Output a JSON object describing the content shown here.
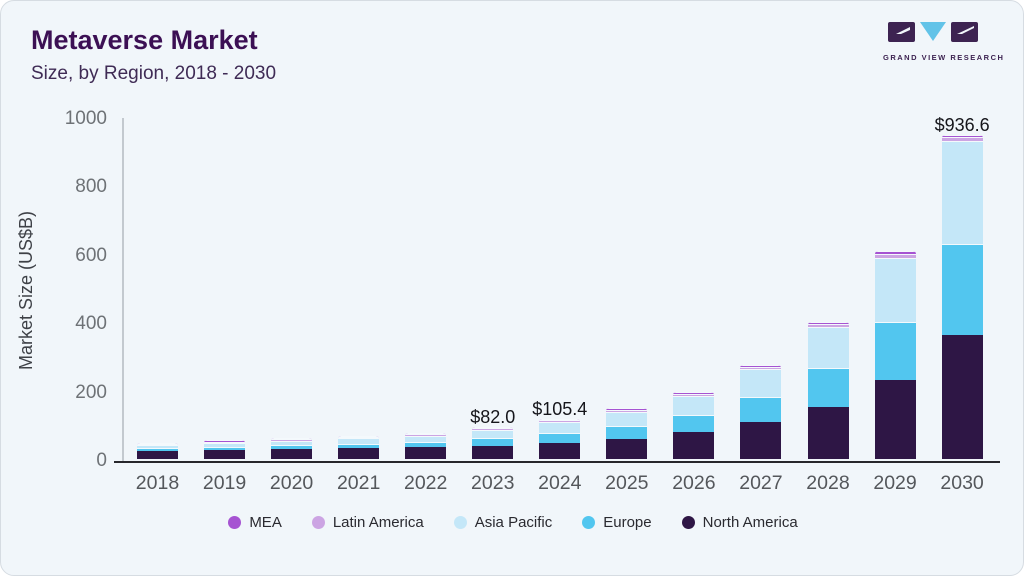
{
  "header": {
    "title": "Metaverse Market",
    "subtitle": "Size, by Region, 2018 - 2030"
  },
  "logo": {
    "name": "grand-view-research-logo",
    "text": "GRAND VIEW RESEARCH",
    "dark_color": "#3d2351",
    "blue_color": "#62c3e8"
  },
  "chart_data": {
    "type": "bar",
    "stacked": true,
    "title": "Metaverse Market Size, by Region, 2018 - 2030",
    "xlabel": "",
    "ylabel": "Market Size (US$B)",
    "ylim": [
      0,
      1000
    ],
    "yticks": [
      0,
      200,
      400,
      600,
      800,
      1000
    ],
    "grid": false,
    "legend_position": "bottom",
    "categories": [
      "2018",
      "2019",
      "2020",
      "2021",
      "2022",
      "2023",
      "2024",
      "2025",
      "2026",
      "2027",
      "2028",
      "2029",
      "2030"
    ],
    "series": [
      {
        "name": "North America",
        "color": "#2e1645",
        "values": [
          22,
          25,
          28,
          31,
          34.5,
          37,
          46,
          58,
          79,
          107,
          153,
          230,
          362
        ]
      },
      {
        "name": "Europe",
        "color": "#52c6ef",
        "values": [
          6,
          7.5,
          9,
          11,
          13,
          21.5,
          27,
          35,
          47,
          72,
          110,
          167,
          264
        ]
      },
      {
        "name": "Asia Pacific",
        "color": "#c4e7f8",
        "values": [
          6.5,
          8.5,
          10.5,
          12.5,
          14,
          21.5,
          29,
          39,
          52.5,
          77,
          117,
          186,
          299
        ]
      },
      {
        "name": "Latin America",
        "color": "#cca4e3",
        "values": [
          1,
          1.2,
          1.4,
          1.6,
          1.6,
          1.4,
          2.3,
          3,
          3.7,
          4.5,
          6,
          8.4,
          8
        ]
      },
      {
        "name": "MEA",
        "color": "#a653d2",
        "values": [
          0.5,
          0.6,
          0.7,
          0.8,
          0.7,
          0.6,
          1.1,
          1.4,
          1.8,
          2,
          2.8,
          3.8,
          3.6
        ]
      }
    ],
    "totals_shown": {
      "2023": "$82.0",
      "2024": "$105.4",
      "2030": "$936.6"
    }
  },
  "legend": {
    "items": [
      {
        "label": "MEA",
        "color": "#a653d2"
      },
      {
        "label": "Latin America",
        "color": "#cca4e3"
      },
      {
        "label": "Asia Pacific",
        "color": "#c4e7f8"
      },
      {
        "label": "Europe",
        "color": "#52c6ef"
      },
      {
        "label": "North America",
        "color": "#2e1645"
      }
    ]
  }
}
